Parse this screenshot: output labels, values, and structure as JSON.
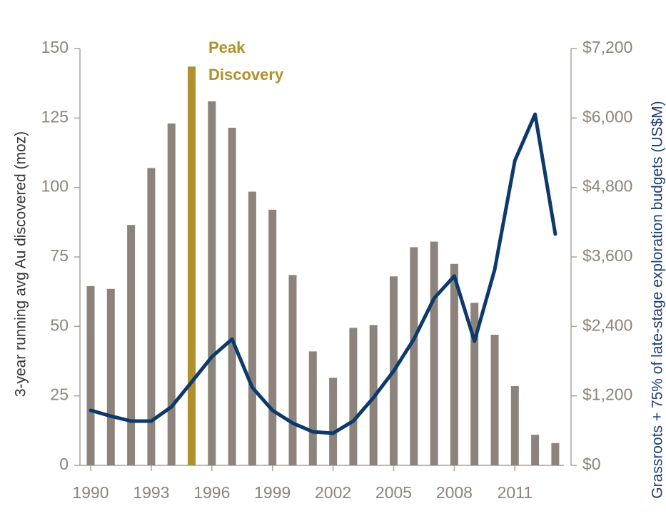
{
  "chart_data": {
    "type": "bar_line",
    "categories": [
      "1990",
      null,
      null,
      "1993",
      null,
      null,
      "1996",
      null,
      null,
      "1999",
      null,
      null,
      "2002",
      null,
      null,
      "2005",
      null,
      null,
      "2008",
      null,
      null,
      "2011",
      null,
      null
    ],
    "series": [
      {
        "type": "bar",
        "axis": "y",
        "color": "#8c847c",
        "colors": [
          "#8c847c",
          "#8c847c",
          "#8c847c",
          "#8c847c",
          "#8c847c",
          "#b0902c",
          "#8c847c",
          "#8c847c",
          "#8c847c",
          "#8c847c",
          "#8c847c",
          "#8c847c",
          "#8c847c",
          "#8c847c",
          "#8c847c",
          "#8c847c",
          "#8c847c",
          "#8c847c",
          "#8c847c",
          "#8c847c",
          "#8c847c",
          "#8c847c",
          "#8c847c",
          "#8c847c"
        ],
        "values": [
          64.5,
          63.5,
          86.5,
          107,
          123,
          143.5,
          131,
          121.5,
          98.5,
          92,
          68.5,
          41,
          31.5,
          49.5,
          50.5,
          68,
          78.5,
          80.5,
          72.5,
          58.5,
          47,
          28.5,
          11,
          8
        ]
      },
      {
        "type": "line",
        "axis": "y2",
        "color": "#0d3a6b",
        "values": [
          950,
          850,
          765,
          765,
          1010,
          1440,
          1875,
          2180,
          1345,
          950,
          730,
          580,
          555,
          765,
          1170,
          1630,
          2180,
          2885,
          3270,
          2145,
          3380,
          5265,
          6065,
          3995
        ]
      }
    ],
    "annotation": [
      "Peak",
      "Discovery"
    ],
    "annotation_color": "#b0902c",
    "y_label": "3-year running avg Au discovered (moz)",
    "y2_label": "Grassroots + 75% of late-stage exploration budgets (US$M)",
    "ylim": [
      0,
      150
    ],
    "yticks": [
      0,
      25,
      50,
      75,
      100,
      125,
      150
    ],
    "y2lim": [
      0,
      7200
    ],
    "y2ticks": [
      {
        "value": 0,
        "label": "$0"
      },
      {
        "value": 1200,
        "label": "$1,200"
      },
      {
        "value": 2400,
        "label": "$2,400"
      },
      {
        "value": 3600,
        "label": "$3,600"
      },
      {
        "value": 4800,
        "label": "$4,800"
      },
      {
        "value": 6000,
        "label": "$6,000"
      },
      {
        "value": 7200,
        "label": "$7,200"
      }
    ]
  }
}
